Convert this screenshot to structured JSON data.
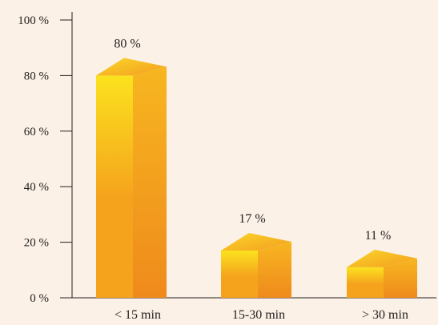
{
  "chart_data": {
    "type": "bar",
    "categories": [
      "< 15 min",
      "15-30 min",
      "> 30 min"
    ],
    "values": [
      80,
      17,
      11
    ],
    "value_labels": [
      "80 %",
      "17 %",
      "11 %"
    ],
    "ylim": [
      0,
      100
    ],
    "yticks": [
      0,
      20,
      40,
      60,
      80,
      100
    ],
    "ytick_labels": [
      "0 %",
      "20 %",
      "40 %",
      "60 %",
      "80 %",
      "100 %"
    ],
    "grid": false,
    "bar_style": "3d",
    "colors": {
      "bar_front_light": "#fbe21e",
      "bar_front_dark": "#f5a31d",
      "bar_side_light": "#f7b620",
      "bar_side_dark": "#ef8a1c",
      "bar_top_light": "#fbd72a",
      "bar_top_dark": "#f39d1e",
      "axis": "#231f20",
      "background": "#fbf1e6"
    }
  }
}
